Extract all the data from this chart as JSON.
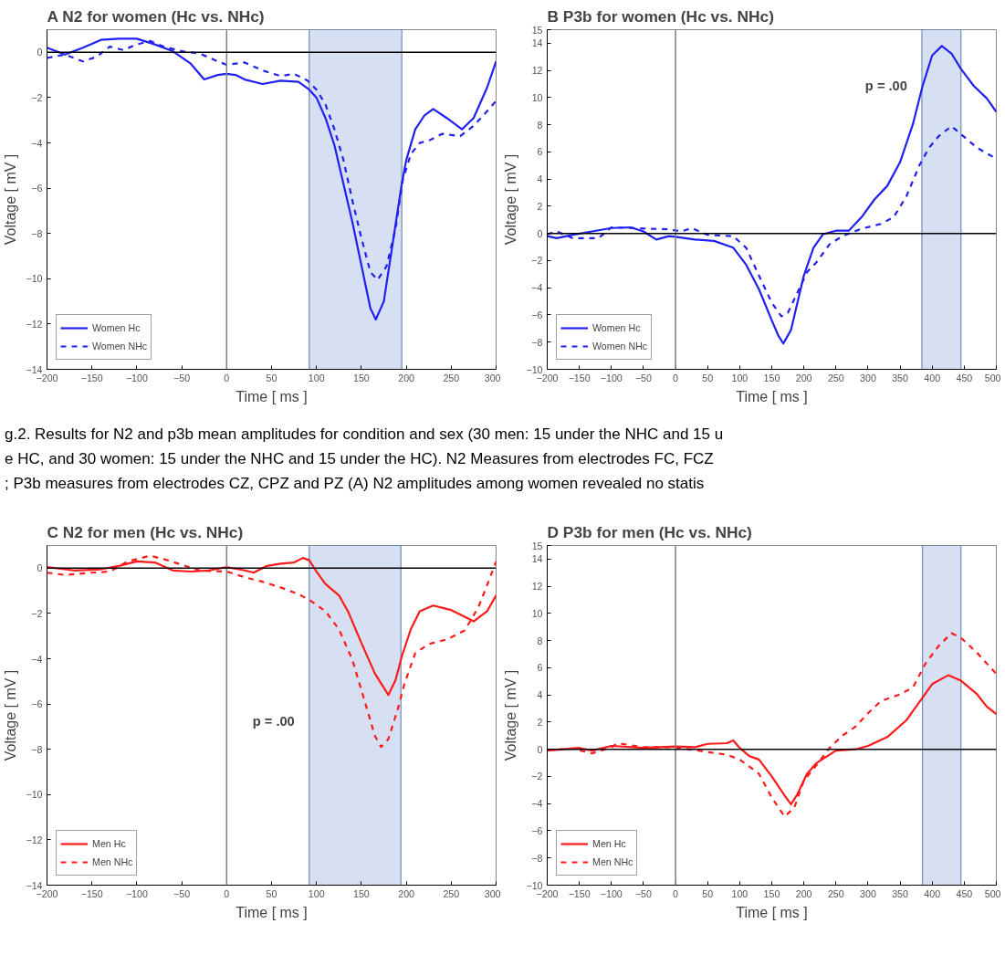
{
  "chart_data": [
    {
      "type": "line",
      "title": "A    N2 for women (Hc vs. NHc)",
      "xlabel": "Time [ ms ]",
      "ylabel": "Voltage [ mV ]",
      "xlim": [
        -200,
        300
      ],
      "ylim": [
        -14,
        1
      ],
      "xticks": [
        -200,
        -150,
        -100,
        -50,
        0,
        50,
        100,
        150,
        200,
        250,
        300
      ],
      "yticks": [
        -14,
        -12,
        -10,
        -8,
        -6,
        -4,
        -2,
        0
      ],
      "grid": false,
      "legend": "bottom left",
      "ref_lines": [
        {
          "axis": "x",
          "value": 0,
          "color": "#808080"
        },
        {
          "axis": "y",
          "value": 0,
          "color": "#000000"
        }
      ],
      "bands": [
        {
          "axis": "x",
          "from": 92,
          "to": 195,
          "color": "#b4c6e7"
        }
      ],
      "series": [
        {
          "name": "Women Hc",
          "color": "#2020f0",
          "line_style": "solid",
          "x": [
            -200,
            -180,
            -160,
            -140,
            -120,
            -100,
            -80,
            -60,
            -40,
            -25,
            -10,
            0,
            10,
            20,
            40,
            60,
            80,
            92,
            100,
            110,
            120,
            130,
            140,
            150,
            160,
            166,
            175,
            185,
            195,
            200,
            210,
            220,
            230,
            245,
            262,
            275,
            290,
            300
          ],
          "values": [
            0.2,
            -0.1,
            0.2,
            0.55,
            0.6,
            0.6,
            0.35,
            0.05,
            -0.5,
            -1.2,
            -1.0,
            -0.95,
            -1.0,
            -1.2,
            -1.4,
            -1.25,
            -1.3,
            -1.65,
            -2.0,
            -2.9,
            -4.1,
            -5.8,
            -7.5,
            -9.4,
            -11.3,
            -11.8,
            -11.0,
            -8.4,
            -5.8,
            -4.75,
            -3.4,
            -2.8,
            -2.5,
            -2.9,
            -3.4,
            -2.9,
            -1.55,
            -0.4
          ]
        },
        {
          "name": "Women NHc",
          "color": "#2020f0",
          "line_style": "dashed",
          "x": [
            -200,
            -180,
            -160,
            -145,
            -130,
            -115,
            -100,
            -85,
            -70,
            -50,
            -30,
            -10,
            0,
            20,
            40,
            60,
            75,
            90,
            100,
            110,
            120,
            130,
            140,
            150,
            160,
            168,
            178,
            188,
            196,
            205,
            215,
            225,
            240,
            260,
            275,
            290,
            300
          ],
          "values": [
            -0.25,
            -0.1,
            -0.4,
            -0.2,
            0.25,
            0.1,
            0.35,
            0.5,
            0.25,
            0.05,
            -0.05,
            -0.4,
            -0.55,
            -0.45,
            -0.8,
            -1.05,
            -0.95,
            -1.25,
            -1.65,
            -2.3,
            -3.4,
            -4.75,
            -6.55,
            -8.2,
            -9.7,
            -10.05,
            -9.45,
            -7.8,
            -5.65,
            -4.5,
            -4.0,
            -3.9,
            -3.6,
            -3.7,
            -3.25,
            -2.6,
            -2.15
          ]
        }
      ]
    },
    {
      "type": "line",
      "title": "B    P3b for women (Hc vs. NHc)",
      "xlabel": "Time [ ms ]",
      "ylabel": "Voltage [ mV ]",
      "xlim": [
        -200,
        500
      ],
      "ylim": [
        -10,
        15
      ],
      "xticks": [
        -200,
        -150,
        -100,
        -50,
        0,
        50,
        100,
        150,
        200,
        250,
        300,
        350,
        400,
        450,
        500
      ],
      "yticks": [
        -10,
        -8,
        -6,
        -4,
        -2,
        0,
        2,
        4,
        6,
        8,
        10,
        12,
        14,
        15
      ],
      "grid": false,
      "legend": "bottom left",
      "ref_lines": [
        {
          "axis": "x",
          "value": 0,
          "color": "#808080"
        },
        {
          "axis": "y",
          "value": 0,
          "color": "#000000"
        }
      ],
      "bands": [
        {
          "axis": "x",
          "from": 384,
          "to": 445,
          "color": "#b4c6e7"
        }
      ],
      "annotations": [
        "p  = .00"
      ],
      "series": [
        {
          "name": "Women Hc",
          "color": "#2020f0",
          "line_style": "solid",
          "x": [
            -200,
            -185,
            -160,
            -130,
            -100,
            -70,
            -50,
            -30,
            -10,
            0,
            30,
            60,
            90,
            110,
            130,
            150,
            160,
            168,
            180,
            190,
            200,
            215,
            230,
            250,
            270,
            290,
            310,
            330,
            350,
            370,
            385,
            400,
            415,
            430,
            445,
            465,
            485,
            500
          ],
          "values": [
            -0.2,
            -0.35,
            -0.1,
            0.15,
            0.4,
            0.45,
            0.15,
            -0.45,
            -0.2,
            -0.25,
            -0.45,
            -0.55,
            -1.05,
            -2.3,
            -4.1,
            -6.4,
            -7.5,
            -8.1,
            -7.1,
            -5.1,
            -3.1,
            -1.05,
            -0.05,
            0.2,
            0.2,
            1.2,
            2.5,
            3.5,
            5.25,
            8.05,
            10.85,
            13.1,
            13.8,
            13.25,
            12.1,
            10.85,
            9.95,
            8.95
          ]
        },
        {
          "name": "Women NHc",
          "color": "#2020f0",
          "line_style": "dashed",
          "x": [
            -200,
            -185,
            -160,
            -120,
            -100,
            -70,
            -40,
            -10,
            10,
            25,
            50,
            90,
            110,
            130,
            150,
            165,
            175,
            190,
            205,
            220,
            240,
            260,
            290,
            320,
            340,
            360,
            380,
            395,
            410,
            430,
            445,
            470,
            500
          ],
          "values": [
            -0.05,
            0.15,
            -0.35,
            -0.35,
            0.45,
            0.4,
            0.35,
            0.3,
            0.15,
            0.4,
            -0.1,
            -0.2,
            -1.05,
            -3.1,
            -5.1,
            -6.1,
            -5.85,
            -4.35,
            -2.85,
            -2.1,
            -0.8,
            -0.2,
            0.35,
            0.7,
            1.2,
            2.75,
            5.0,
            6.3,
            7.15,
            7.9,
            7.3,
            6.3,
            5.5
          ]
        }
      ]
    },
    {
      "type": "other",
      "annotations": [
        "g.2. Results for N2 and p3b mean amplitudes for condition and sex (30 men: 15 under the NHC and 15 u",
        "e HC, and 30 women: 15 under the NHC and 15 under the HC). N2 Measures from electrodes FC, FCZ",
        "; P3b measures from electrodes CZ, CPZ and PZ (A) N2 amplitudes among women revealed no statis"
      ]
    },
    {
      "type": "line",
      "title": "C    N2 for men (Hc vs. NHc)",
      "xlabel": "Time [ ms ]",
      "ylabel": "Voltage [ mV ]",
      "xlim": [
        -200,
        300
      ],
      "ylim": [
        -14,
        1
      ],
      "xticks": [
        -200,
        -150,
        -100,
        -50,
        0,
        50,
        100,
        150,
        200,
        250,
        300
      ],
      "yticks": [
        -14,
        -12,
        -10,
        -8,
        -6,
        -4,
        -2,
        0
      ],
      "grid": false,
      "legend": "bottom left",
      "ref_lines": [
        {
          "axis": "x",
          "value": 0,
          "color": "#808080"
        },
        {
          "axis": "y",
          "value": 0,
          "color": "#000000"
        }
      ],
      "bands": [
        {
          "axis": "x",
          "from": 92,
          "to": 194,
          "color": "#b4c6e7"
        }
      ],
      "annotations": [
        "p  = .00"
      ],
      "series": [
        {
          "name": "Men Hc",
          "color": "#ff1a1a",
          "line_style": "solid",
          "x": [
            -200,
            -170,
            -140,
            -120,
            -100,
            -80,
            -60,
            -40,
            -20,
            0,
            20,
            30,
            45,
            60,
            75,
            85,
            92,
            100,
            110,
            125,
            135,
            150,
            165,
            180,
            188,
            195,
            205,
            215,
            230,
            250,
            275,
            290,
            300
          ],
          "values": [
            0.05,
            -0.1,
            -0.05,
            0.1,
            0.3,
            0.25,
            -0.1,
            -0.15,
            -0.1,
            0.05,
            -0.1,
            -0.2,
            0.1,
            0.2,
            0.25,
            0.45,
            0.35,
            -0.15,
            -0.7,
            -1.2,
            -1.9,
            -3.3,
            -4.65,
            -5.6,
            -4.95,
            -3.9,
            -2.7,
            -1.9,
            -1.65,
            -1.85,
            -2.35,
            -1.9,
            -1.2
          ]
        },
        {
          "name": "Men NHc",
          "color": "#ff1a1a",
          "line_style": "dashed",
          "x": [
            -200,
            -180,
            -150,
            -130,
            -110,
            -85,
            -70,
            -50,
            -30,
            0,
            20,
            40,
            60,
            80,
            92,
            110,
            125,
            140,
            155,
            165,
            172,
            180,
            190,
            198,
            210,
            225,
            245,
            265,
            280,
            292,
            300
          ],
          "values": [
            -0.2,
            -0.3,
            -0.2,
            -0.15,
            0.3,
            0.55,
            0.4,
            0.15,
            -0.1,
            -0.15,
            -0.4,
            -0.6,
            -0.85,
            -1.15,
            -1.4,
            -1.9,
            -2.7,
            -4.05,
            -6.05,
            -7.4,
            -7.9,
            -7.55,
            -6.3,
            -5.1,
            -3.75,
            -3.35,
            -3.15,
            -2.75,
            -1.75,
            -0.55,
            0.3
          ]
        }
      ]
    },
    {
      "type": "line",
      "title": "D    P3b for men (Hc vs. NHc)",
      "xlabel": "Time [ ms ]",
      "ylabel": "Voltage [ mV ]",
      "xlim": [
        -200,
        500
      ],
      "ylim": [
        -10,
        15
      ],
      "xticks": [
        -200,
        -150,
        -100,
        -50,
        0,
        50,
        100,
        150,
        200,
        250,
        300,
        350,
        400,
        450,
        500
      ],
      "yticks": [
        -10,
        -8,
        -6,
        -4,
        -2,
        0,
        2,
        4,
        6,
        8,
        10,
        12,
        14,
        15
      ],
      "grid": false,
      "legend": "bottom left",
      "ref_lines": [
        {
          "axis": "x",
          "value": 0,
          "color": "#808080"
        },
        {
          "axis": "y",
          "value": 0,
          "color": "#000000"
        }
      ],
      "bands": [
        {
          "axis": "x",
          "from": 385,
          "to": 445,
          "color": "#b4c6e7"
        }
      ],
      "series": [
        {
          "name": "Men Hc",
          "color": "#ff1a1a",
          "line_style": "solid",
          "x": [
            -200,
            -150,
            -130,
            -100,
            -50,
            0,
            30,
            50,
            80,
            90,
            100,
            115,
            130,
            150,
            170,
            180,
            190,
            205,
            220,
            250,
            280,
            300,
            330,
            360,
            385,
            400,
            425,
            445,
            470,
            485,
            500
          ],
          "values": [
            -0.1,
            0.1,
            -0.1,
            0.25,
            0.1,
            0.2,
            0.15,
            0.4,
            0.45,
            0.65,
            0.1,
            -0.5,
            -0.75,
            -2.0,
            -3.4,
            -4.05,
            -3.3,
            -1.8,
            -1.0,
            -0.1,
            0.0,
            0.25,
            0.9,
            2.15,
            3.8,
            4.8,
            5.45,
            5.05,
            4.05,
            3.15,
            2.6
          ]
        },
        {
          "name": "Men NHc",
          "color": "#ff1a1a",
          "line_style": "dashed",
          "x": [
            -200,
            -160,
            -130,
            -100,
            -90,
            -50,
            0,
            50,
            80,
            100,
            130,
            150,
            170,
            185,
            200,
            220,
            240,
            260,
            280,
            300,
            320,
            350,
            370,
            390,
            410,
            430,
            445,
            470,
            500
          ],
          "values": [
            -0.05,
            0.05,
            -0.3,
            0.15,
            0.45,
            0.15,
            0.15,
            -0.2,
            -0.4,
            -0.75,
            -1.8,
            -3.55,
            -4.95,
            -4.3,
            -2.3,
            -1.15,
            0.1,
            1.0,
            1.65,
            2.65,
            3.55,
            4.05,
            4.55,
            6.35,
            7.6,
            8.55,
            8.2,
            7.1,
            5.55
          ]
        }
      ]
    }
  ]
}
